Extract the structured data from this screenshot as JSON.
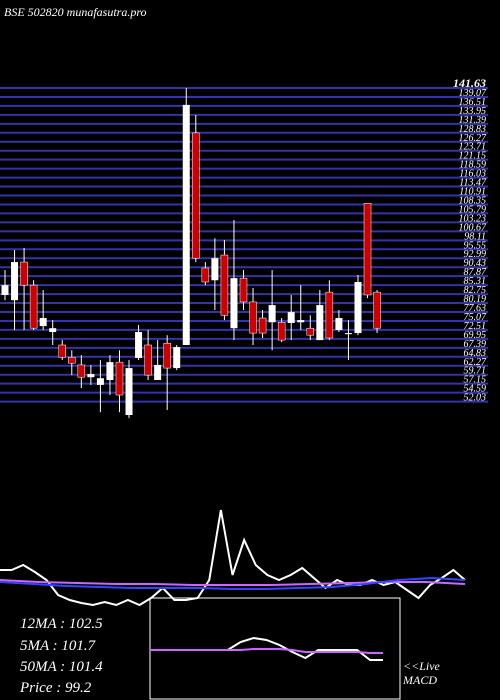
{
  "chart_data": {
    "type": "candlestick",
    "title": "BSE 502820 munafasutra.pro",
    "open": [
      82.5,
      81.0,
      91.9,
      85.3,
      73.6,
      71.9,
      68.2,
      64.7,
      62.5,
      59.0,
      56.8,
      58.2,
      63.3,
      48.2,
      64.5,
      68.2,
      58.2,
      68.7,
      61.6,
      68.2,
      128.8,
      90.2,
      86.7,
      93.9,
      73.0,
      87.3,
      80.5,
      75.9,
      74.7,
      74.7,
      74.5,
      74.7,
      73.0,
      69.6,
      83.3,
      72.5,
      71.3,
      71.6,
      108.7,
      83.3
    ],
    "high": [
      89.6,
      95.3,
      95.9,
      86.7,
      83.9,
      75.3,
      69.6,
      66.7,
      65.3,
      62.5,
      63.9,
      65.3,
      66.7,
      63.9,
      73.9,
      72.5,
      69.6,
      71.0,
      68.2,
      141.63,
      133.9,
      91.9,
      98.7,
      98.2,
      103.9,
      89.6,
      84.5,
      78.2,
      89.6,
      75.9,
      82.5,
      85.3,
      76.7,
      83.9,
      86.7,
      78.2,
      75.3,
      88.2,
      108.7,
      83.9
    ],
    "low": [
      81.0,
      72.5,
      72.5,
      72.5,
      72.5,
      68.2,
      63.9,
      59.6,
      55.9,
      56.8,
      49.0,
      53.9,
      49.0,
      47.3,
      63.9,
      58.2,
      58.2,
      49.6,
      61.0,
      68.2,
      91.9,
      85.3,
      78.2,
      75.3,
      69.6,
      78.2,
      68.2,
      70.2,
      66.7,
      69.0,
      69.6,
      72.5,
      69.6,
      69.6,
      69.6,
      71.9,
      63.9,
      71.0,
      81.6,
      71.6
    ],
    "close": [
      85.3,
      91.9,
      85.3,
      73.0,
      75.9,
      73.0,
      64.7,
      63.0,
      59.0,
      59.9,
      58.7,
      63.3,
      53.9,
      61.6,
      71.9,
      59.6,
      62.5,
      61.6,
      67.6,
      136.8,
      93.0,
      86.2,
      93.0,
      76.7,
      87.3,
      80.5,
      71.6,
      71.6,
      79.6,
      69.6,
      77.6,
      75.3,
      71.0,
      79.6,
      70.2,
      75.9,
      71.6,
      86.2,
      82.5,
      73.0
    ],
    "up_color": "#ffffff",
    "down_color": "#cc0000",
    "grid_color": "#3333aa",
    "ylim": [
      46.77,
      141.63
    ],
    "yticks": [
      141.63,
      139.07,
      136.51,
      133.95,
      131.39,
      128.83,
      126.27,
      123.71,
      121.15,
      118.59,
      116.03,
      113.47,
      110.91,
      108.35,
      105.79,
      103.23,
      100.67,
      98.11,
      95.55,
      92.99,
      90.43,
      87.87,
      85.31,
      82.75,
      80.19,
      77.63,
      75.07,
      72.51,
      69.95,
      67.39,
      64.83,
      62.27,
      59.71,
      57.15,
      54.59,
      52.03
    ],
    "indicators": {
      "ylim": [
        0,
        120
      ],
      "series": [
        {
          "color": "#ffffff",
          "values": [
            50,
            50,
            55,
            48,
            40,
            25,
            20,
            17,
            15,
            18,
            15,
            20,
            15,
            22,
            32,
            20,
            20,
            22,
            40,
            110,
            45,
            80,
            55,
            45,
            40,
            45,
            52,
            42,
            32,
            40,
            35,
            35,
            40,
            35,
            38,
            30,
            22,
            35,
            42,
            50,
            40
          ]
        },
        {
          "color": "#cc66ff",
          "values": [
            40,
            38,
            37,
            36,
            36,
            35,
            35,
            35,
            36,
            37,
            38,
            38,
            36
          ]
        },
        {
          "color": "#3344ff",
          "values": [
            38,
            36,
            34,
            33,
            32,
            32,
            32,
            31,
            31,
            32,
            33,
            36,
            40,
            42,
            40
          ]
        }
      ]
    },
    "macd": {
      "ylim": [
        -30,
        30
      ],
      "series": [
        {
          "color": "#ffffff",
          "values": [
            0,
            0,
            0,
            0,
            0,
            0,
            0,
            8,
            12,
            10,
            5,
            -2,
            -8,
            0,
            0,
            0,
            0,
            -10,
            -10
          ]
        },
        {
          "color": "#cc66ff",
          "values": [
            0,
            0,
            0,
            0,
            0,
            0,
            0,
            0,
            1,
            1,
            1,
            0,
            -2,
            -2,
            -2,
            -2,
            -2,
            -3,
            -3
          ]
        }
      ]
    },
    "labels": [
      "12MA : 102.5",
      "5MA : 101.7",
      "50MA : 101.4",
      "Price  : 99.2"
    ],
    "live": "<<Live",
    "macd_label": "MACD"
  }
}
